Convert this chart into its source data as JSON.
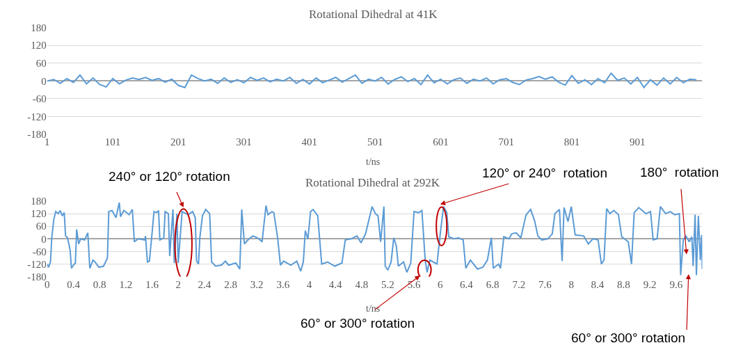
{
  "chart_data": [
    {
      "type": "line",
      "title": "Rotational Dihedral at 41K",
      "xlabel": "t/ns",
      "color": "#5b9bd5",
      "grid": "y",
      "xlim": [
        1,
        1000
      ],
      "xticks": [
        1,
        101,
        201,
        301,
        401,
        501,
        601,
        701,
        801,
        901
      ],
      "ylim": [
        -180,
        180
      ],
      "yticks": [
        -180,
        -120,
        -60,
        0,
        60,
        120,
        180
      ],
      "x": [
        1,
        11,
        21,
        31,
        41,
        51,
        61,
        71,
        81,
        91,
        101,
        111,
        121,
        131,
        141,
        151,
        161,
        171,
        181,
        191,
        201,
        211,
        221,
        231,
        241,
        251,
        261,
        271,
        281,
        291,
        301,
        311,
        321,
        331,
        341,
        351,
        361,
        371,
        381,
        391,
        401,
        411,
        421,
        431,
        441,
        451,
        461,
        471,
        481,
        491,
        501,
        511,
        521,
        531,
        541,
        551,
        561,
        571,
        581,
        591,
        601,
        611,
        621,
        631,
        641,
        651,
        661,
        671,
        681,
        691,
        701,
        711,
        721,
        731,
        741,
        751,
        761,
        771,
        781,
        791,
        801,
        811,
        821,
        831,
        841,
        851,
        861,
        871,
        881,
        891,
        901,
        911,
        921,
        931,
        941,
        951,
        961,
        971,
        981,
        991
      ],
      "values": [
        0,
        5,
        -8,
        8,
        -5,
        20,
        -10,
        10,
        -12,
        -20,
        8,
        -10,
        3,
        10,
        5,
        12,
        2,
        8,
        -4,
        6,
        -15,
        -22,
        20,
        8,
        0,
        6,
        -8,
        10,
        -5,
        4,
        -6,
        12,
        2,
        10,
        -3,
        6,
        0,
        12,
        -8,
        5,
        -10,
        10,
        -6,
        3,
        12,
        -4,
        8,
        20,
        -8,
        6,
        0,
        12,
        -10,
        5,
        14,
        -2,
        8,
        -12,
        20,
        -6,
        6,
        -10,
        4,
        10,
        -8,
        6,
        0,
        10,
        -10,
        4,
        8,
        -5,
        -12,
        3,
        8,
        15,
        6,
        14,
        -4,
        -14,
        18,
        -8,
        4,
        -12,
        8,
        -6,
        26,
        2,
        10,
        -10,
        12,
        -22,
        4,
        -14,
        10,
        -10,
        12,
        -6,
        6,
        4
      ]
    },
    {
      "type": "line",
      "title": "Rotational Dihedral at 292K",
      "xlabel": "t/ns",
      "color": "#5b9bd5",
      "grid": "y",
      "xlim": [
        0,
        10
      ],
      "xticks": [
        0,
        0.4,
        0.8,
        1.2,
        1.6,
        2,
        2.4,
        2.8,
        3.2,
        3.6,
        4,
        4.4,
        4.8,
        5.2,
        5.6,
        6,
        6.4,
        6.8,
        7.2,
        7.6,
        8,
        8.4,
        8.8,
        9.2,
        9.6
      ],
      "ylim": [
        -180,
        180
      ],
      "yticks": [
        -180,
        -120,
        -60,
        0,
        60,
        120,
        180
      ],
      "x": [
        0,
        0.02,
        0.05,
        0.07,
        0.1,
        0.13,
        0.17,
        0.2,
        0.23,
        0.26,
        0.28,
        0.31,
        0.35,
        0.37,
        0.4,
        0.43,
        0.45,
        0.48,
        0.51,
        0.57,
        0.62,
        0.65,
        0.7,
        0.73,
        0.79,
        0.86,
        0.92,
        0.94,
        0.99,
        1.05,
        1.1,
        1.12,
        1.17,
        1.25,
        1.3,
        1.33,
        1.39,
        1.49,
        1.5,
        1.53,
        1.56,
        1.6,
        1.63,
        1.67,
        1.7,
        1.72,
        1.78,
        1.8,
        1.85,
        1.87,
        1.92,
        1.94,
        1.98,
        2.0,
        2.06,
        2.15,
        2.22,
        2.26,
        2.28,
        2.31,
        2.33,
        2.37,
        2.42,
        2.48,
        2.51,
        2.57,
        2.66,
        2.72,
        2.77,
        2.88,
        2.94,
        2.97,
        3.01,
        3.08,
        3.14,
        3.21,
        3.28,
        3.34,
        3.37,
        3.43,
        3.46,
        3.52,
        3.56,
        3.61,
        3.72,
        3.81,
        3.87,
        3.91,
        3.94,
        3.98,
        4.02,
        4.06,
        4.13,
        4.19,
        4.28,
        4.39,
        4.5,
        4.55,
        4.64,
        4.73,
        4.79,
        4.86,
        4.96,
        5.01,
        5.05,
        5.09,
        5.14,
        5.16,
        5.2,
        5.25,
        5.29,
        5.33,
        5.36,
        5.44,
        5.49,
        5.55,
        5.6,
        5.67,
        5.72,
        5.77,
        5.8,
        5.84,
        5.95,
        6.0,
        6.05,
        6.1,
        6.13,
        6.21,
        6.28,
        6.35,
        6.39,
        6.46,
        6.57,
        6.65,
        6.72,
        6.78,
        6.81,
        6.89,
        6.92,
        6.97,
        7.05,
        7.09,
        7.16,
        7.23,
        7.31,
        7.38,
        7.44,
        7.49,
        7.55,
        7.64,
        7.71,
        7.75,
        7.82,
        7.86,
        7.89,
        7.95,
        8.0,
        8.06,
        8.19,
        8.26,
        8.33,
        8.41,
        8.46,
        8.5,
        8.54,
        8.59,
        8.65,
        8.72,
        8.77,
        8.87,
        8.92,
        8.96,
        9.03,
        9.14,
        9.21,
        9.25,
        9.31,
        9.36,
        9.44,
        9.51,
        9.58,
        9.65,
        9.67,
        9.71,
        9.75,
        9.8,
        9.84,
        9.86,
        9.89,
        9.91,
        9.94,
        9.97,
        9.99,
        10.0
      ],
      "values": [
        -120,
        -135,
        -110,
        5,
        91,
        130,
        120,
        135,
        110,
        125,
        15,
        5,
        -53,
        -140,
        -125,
        -115,
        45,
        -24,
        0,
        -5,
        29,
        -140,
        -101,
        -110,
        -135,
        -130,
        -91,
        130,
        135,
        101,
        173,
        106,
        135,
        115,
        140,
        -14,
        0,
        -5,
        14,
        -110,
        -106,
        24,
        130,
        125,
        135,
        -5,
        5,
        130,
        120,
        -82,
        140,
        -115,
        120,
        -115,
        130,
        115,
        130,
        101,
        -106,
        -120,
        5,
        110,
        140,
        120,
        -110,
        -130,
        -125,
        -106,
        -125,
        -115,
        -144,
        140,
        -24,
        0,
        14,
        5,
        -14,
        159,
        115,
        130,
        125,
        0,
        -125,
        -106,
        -125,
        -106,
        -154,
        -110,
        39,
        0,
        130,
        140,
        110,
        -120,
        -110,
        -130,
        -115,
        -5,
        0,
        14,
        -19,
        24,
        154,
        120,
        110,
        -14,
        154,
        -130,
        -149,
        -110,
        5,
        -34,
        -130,
        -110,
        -159,
        -115,
        130,
        125,
        135,
        -101,
        -159,
        -101,
        -120,
        24,
        154,
        125,
        10,
        0,
        5,
        -5,
        -140,
        -101,
        -144,
        -135,
        -101,
        5,
        -140,
        -120,
        -140,
        10,
        0,
        24,
        29,
        5,
        115,
        140,
        87,
        14,
        -5,
        0,
        24,
        120,
        140,
        -106,
        149,
        82,
        154,
        19,
        14,
        -24,
        0,
        -5,
        -120,
        -101,
        144,
        120,
        135,
        115,
        10,
        -14,
        -120,
        125,
        149,
        120,
        130,
        -5,
        0,
        154,
        120,
        130,
        115,
        120,
        -173,
        -5,
        14,
        -14,
        10,
        -130,
        115,
        -173,
        110,
        -101,
        19,
        -144
      ],
      "annotations": [
        "240° or 120° rotation",
        "120° or 240°  rotation",
        "180°  rotation",
        "60° or 300° rotation",
        "60° or 300° rotation"
      ]
    }
  ]
}
